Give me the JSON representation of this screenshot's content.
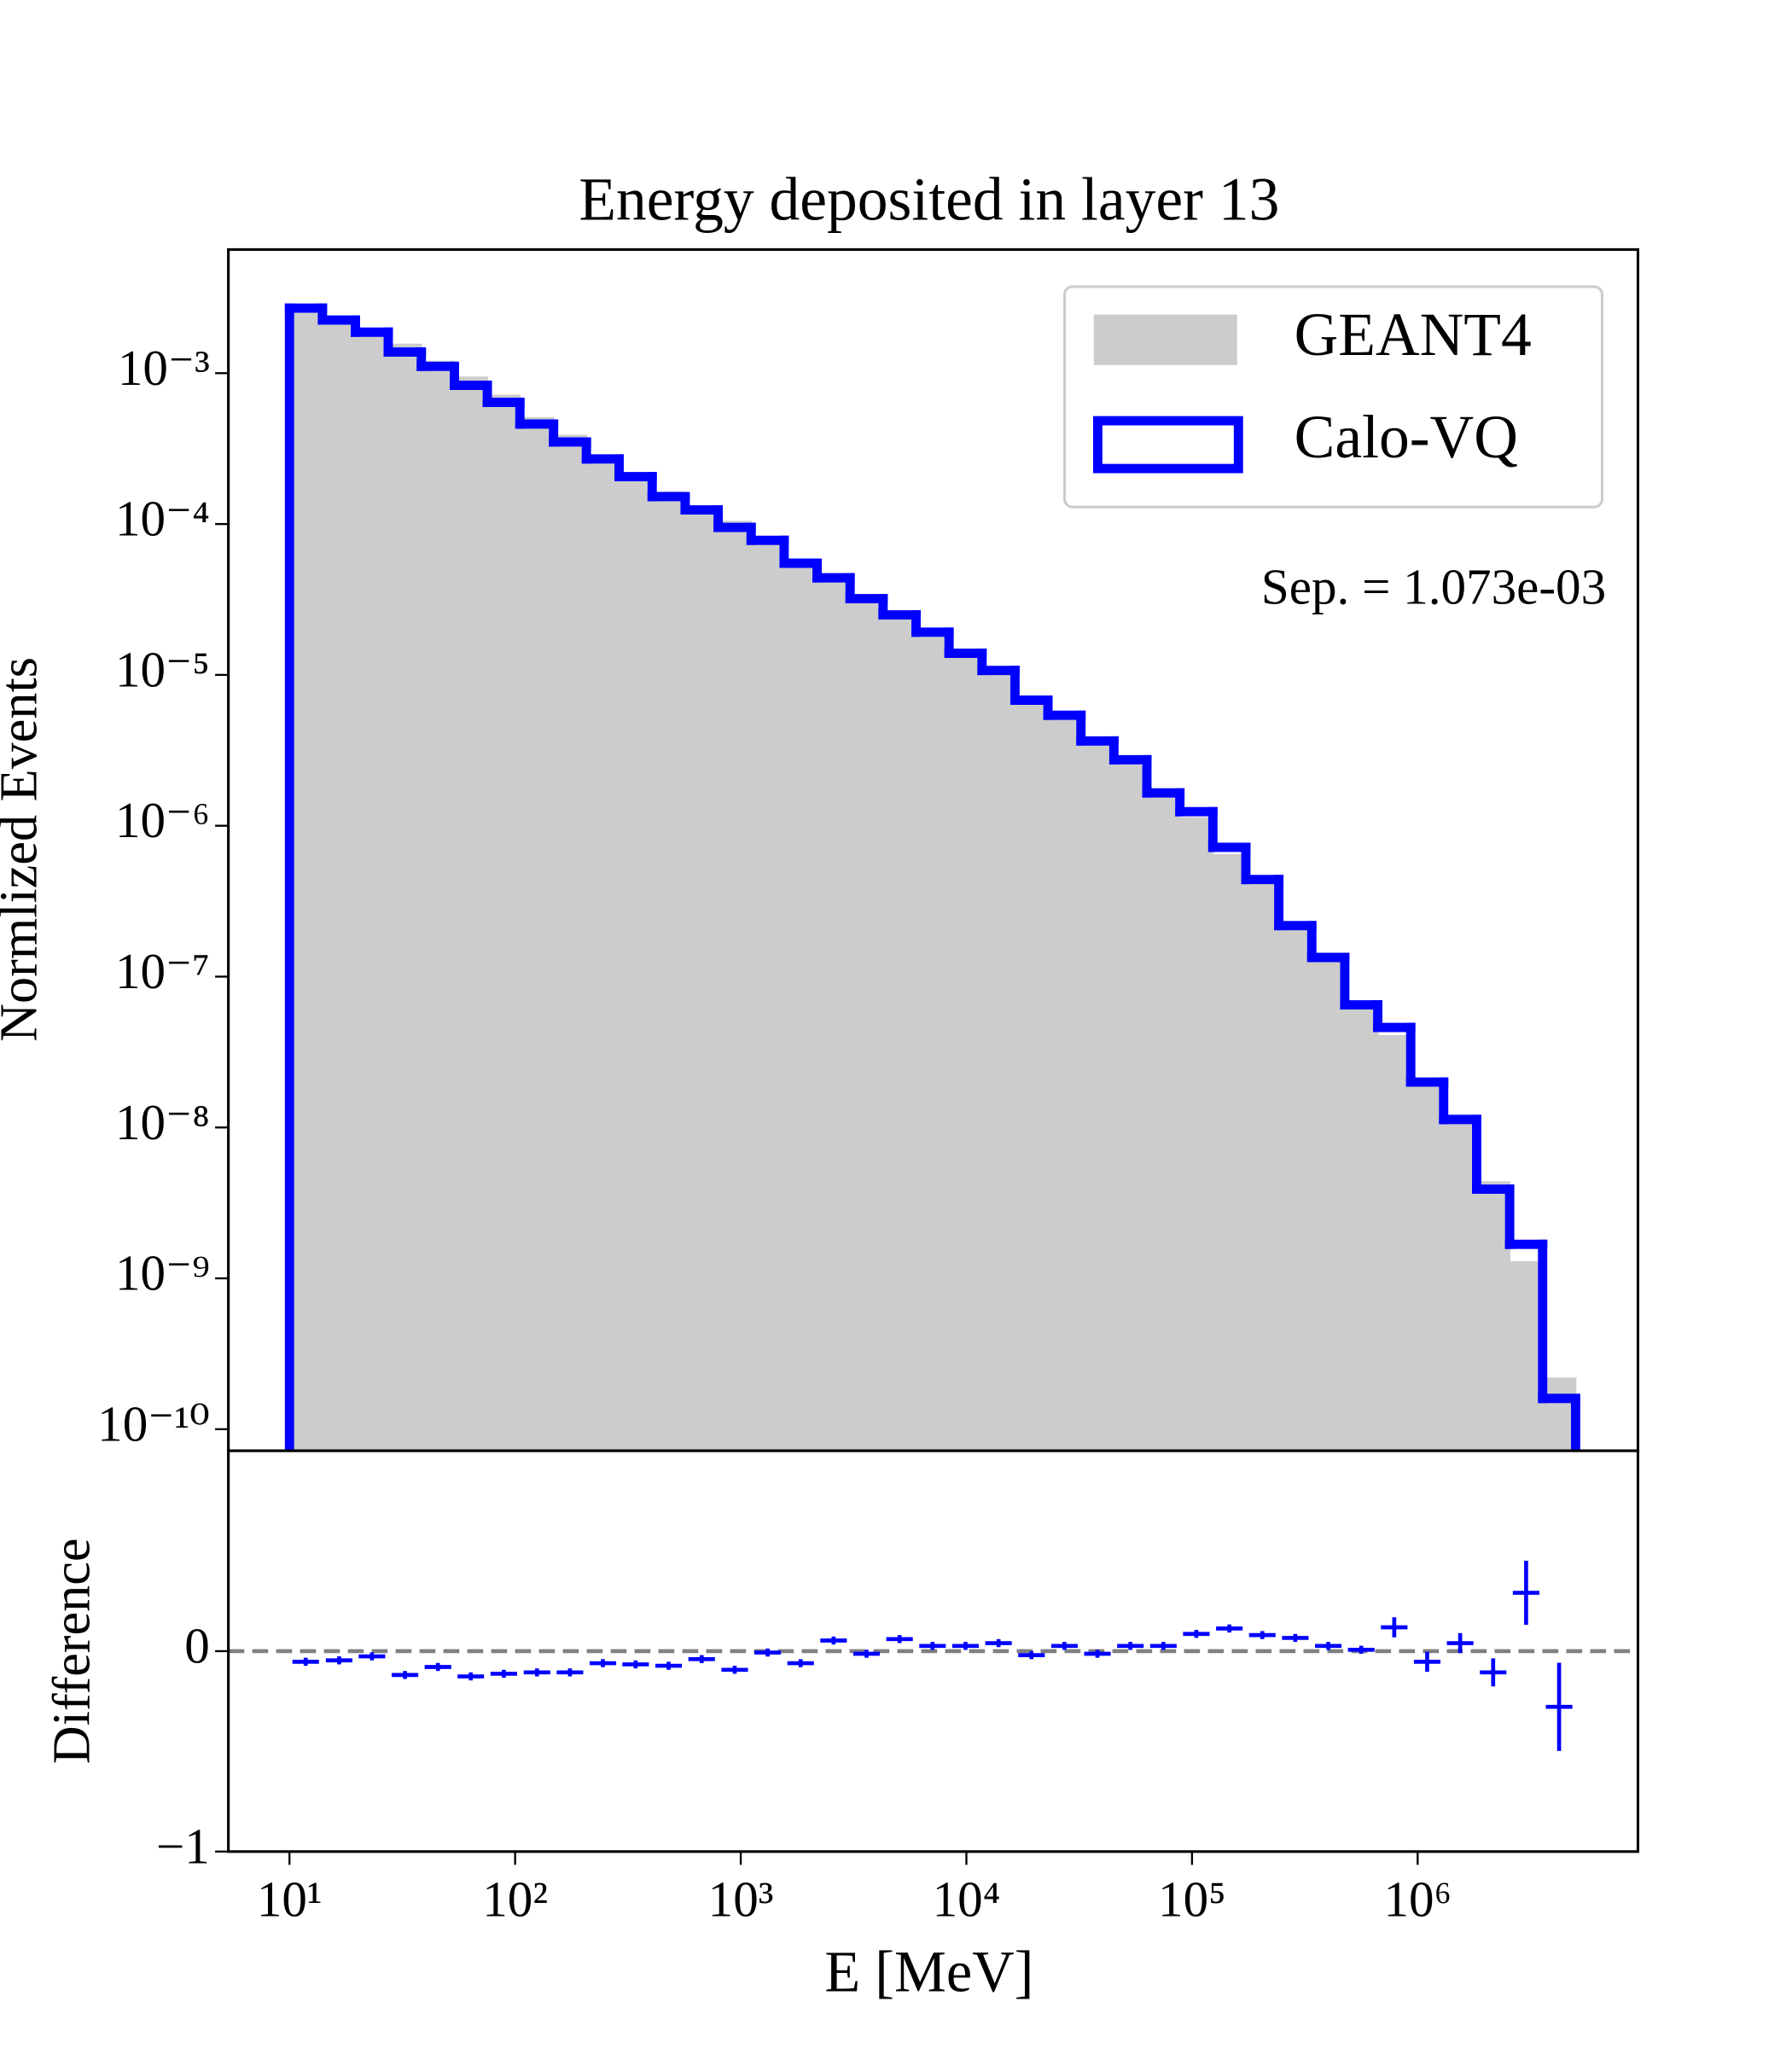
{
  "chart_data": [
    {
      "type": "histogram",
      "title": "Energy deposited in layer 13",
      "ylabel": "Normlized Events",
      "annotation": "Sep. = 1.073e-03",
      "log_x": true,
      "log_y": true,
      "legend": "upper right",
      "bins": [
        10,
        14.0,
        19.6,
        27.4,
        38.4,
        53.8,
        75.3,
        105,
        148,
        207,
        289,
        405,
        567,
        794,
        1112,
        1557,
        2180,
        3052,
        4273,
        5983,
        8377,
        11730,
        16420,
        22990,
        32190,
        45070,
        63100,
        88340,
        123700,
        173200,
        242500,
        339500,
        475300,
        665500,
        931700,
        1304000,
        1826000,
        2557000,
        3580000,
        5012000
      ],
      "series": [
        {
          "name": "GEANT4",
          "color": "#cccccc",
          "histtype": "stepfilled",
          "values": [
            0.00285,
            0.00236,
            0.00192,
            0.00157,
            0.00121,
            0.00095,
            0.00072,
            0.00051,
            0.00039,
            0.000287,
            0.000221,
            0.000164,
            0.000129,
            0.000105,
            7.9e-05,
            5.9e-05,
            4.2e-05,
            3.2e-05,
            2.36e-05,
            1.87e-05,
            1.35e-05,
            1.03e-05,
            6.9e-06,
            5.3e-06,
            3.7e-06,
            2.67e-06,
            1.61e-06,
            1.14e-06,
            6.5e-07,
            4.1e-07,
            2.05e-07,
            1.31e-07,
            6.5e-08,
            4.1e-08,
            2.1e-08,
            1.09e-08,
            4.4e-09,
            1.3e-09,
            2.2e-10
          ]
        },
        {
          "name": "Calo-VQ",
          "color": "#0000ff",
          "histtype": "step",
          "values": [
            0.0027,
            0.00225,
            0.00187,
            0.00138,
            0.00111,
            0.00083,
            0.00064,
            0.00046,
            0.00035,
            0.00027,
            0.000206,
            0.000152,
            0.000124,
            9.5e-05,
            7.8e-05,
            5.5e-05,
            4.4e-05,
            3.2e-05,
            2.5e-05,
            1.92e-05,
            1.39e-05,
            1.07e-05,
            6.8e-06,
            5.4e-06,
            3.65e-06,
            2.74e-06,
            1.65e-06,
            1.24e-06,
            7.2e-07,
            4.4e-07,
            2.18e-07,
            1.34e-07,
            6.5e-08,
            4.6e-08,
            2e-08,
            1.13e-08,
            3.9e-09,
            1.68e-09,
            1.6e-10
          ]
        }
      ],
      "xlim": [
        5.36,
        9470000
      ],
      "ylim": [
        7.2e-11,
        0.0066
      ],
      "yticks": [
        {
          "value": 1e-10,
          "label": "10⁻¹⁰"
        },
        {
          "value": 1e-09,
          "label": "10⁻⁹"
        },
        {
          "value": 1e-08,
          "label": "10⁻⁸"
        },
        {
          "value": 1e-07,
          "label": "10⁻⁷"
        },
        {
          "value": 1e-06,
          "label": "10⁻⁶"
        },
        {
          "value": 1e-05,
          "label": "10⁻⁵"
        },
        {
          "value": 0.0001,
          "label": "10⁻⁴"
        },
        {
          "value": 0.001,
          "label": "10⁻³"
        }
      ]
    },
    {
      "type": "errorbar",
      "ylabel": "Difference",
      "xlabel": "E [MeV]",
      "log_x": true,
      "color": "#0000ff",
      "x": [
        11.8,
        16.6,
        23.2,
        32.5,
        45.5,
        63.6,
        89.1,
        125,
        175,
        245,
        342,
        479,
        671,
        940,
        1316,
        1842,
        2579,
        3611,
        5056,
        7079,
        9912,
        13880,
        19430,
        27200,
        38090,
        53330,
        74660,
        104500,
        146400,
        204900,
        286900,
        401700,
        562400,
        787400,
        1102000,
        1543000,
        2161000,
        3025000,
        4236000
      ],
      "values": [
        -0.053,
        -0.046,
        -0.026,
        -0.119,
        -0.079,
        -0.126,
        -0.113,
        -0.106,
        -0.106,
        -0.06,
        -0.066,
        -0.073,
        -0.04,
        -0.093,
        -0.007,
        -0.06,
        0.053,
        -0.013,
        0.06,
        0.026,
        0.026,
        0.04,
        -0.02,
        0.026,
        -0.013,
        0.026,
        0.026,
        0.086,
        0.113,
        0.08,
        0.066,
        0.026,
        0.007,
        0.119,
        -0.053,
        0.04,
        -0.106,
        0.291,
        -0.278
      ],
      "errors": [
        0.02,
        0.02,
        0.02,
        0.02,
        0.02,
        0.02,
        0.02,
        0.02,
        0.02,
        0.02,
        0.02,
        0.02,
        0.02,
        0.02,
        0.02,
        0.02,
        0.02,
        0.02,
        0.02,
        0.02,
        0.02,
        0.02,
        0.02,
        0.02,
        0.02,
        0.02,
        0.02,
        0.02,
        0.02,
        0.02,
        0.02,
        0.02,
        0.02,
        0.05,
        0.05,
        0.05,
        0.07,
        0.16,
        0.22
      ],
      "xlim": [
        5.36,
        9470000
      ],
      "ylim": [
        -1,
        1
      ],
      "yticks": [
        {
          "value": -1,
          "label": "−1"
        },
        0
      ],
      "xticks": [
        {
          "value": 10,
          "label": "10¹"
        },
        {
          "value": 100,
          "label": "10²"
        },
        {
          "value": 1000,
          "label": "10³"
        },
        {
          "value": 10000,
          "label": "10⁴"
        },
        {
          "value": 100000,
          "label": "10⁵"
        },
        {
          "value": 1000000,
          "label": "10⁶"
        }
      ]
    }
  ]
}
